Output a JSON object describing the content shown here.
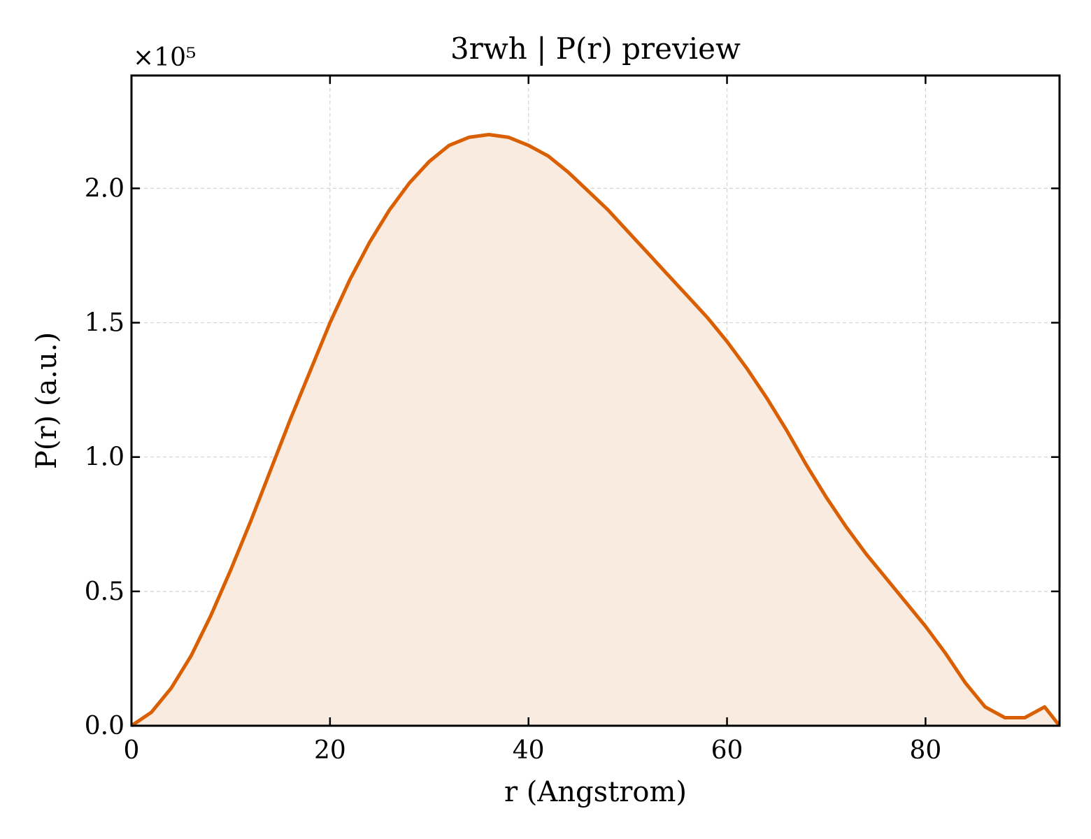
{
  "chart_data": {
    "type": "area",
    "title": "3rwh | P(r) preview",
    "xlabel": "r (Angstrom)",
    "ylabel": "P(r) (a.u.)",
    "y_multiplier_label": "×10⁵",
    "xlim": [
      0,
      93.5
    ],
    "ylim": [
      0,
      2.42
    ],
    "y_scale_factor": 100000,
    "x_ticks": [
      0,
      20,
      40,
      60,
      80
    ],
    "x_tick_labels": [
      "0",
      "20",
      "40",
      "60",
      "80"
    ],
    "y_ticks": [
      0,
      0.5,
      1.0,
      1.5,
      2.0
    ],
    "y_tick_labels": [
      "0.0",
      "0.5",
      "1.0",
      "1.5",
      "2.0"
    ],
    "grid": true,
    "line_color": "#d95f02",
    "fill_color": "#f9ebe0",
    "series": [
      {
        "x": [
          0,
          2,
          4,
          6,
          8,
          10,
          12,
          14,
          16,
          18,
          20,
          22,
          24,
          26,
          28,
          30,
          32,
          34,
          36,
          38,
          40,
          42,
          44,
          46,
          48,
          50,
          52,
          54,
          56,
          58,
          60,
          62,
          64,
          66,
          68,
          70,
          72,
          74,
          76,
          78,
          80,
          82,
          84,
          86,
          88,
          90,
          92,
          93.5
        ],
        "y": [
          0,
          0.05,
          0.14,
          0.26,
          0.41,
          0.58,
          0.76,
          0.95,
          1.14,
          1.32,
          1.5,
          1.66,
          1.8,
          1.92,
          2.02,
          2.1,
          2.16,
          2.19,
          2.2,
          2.19,
          2.16,
          2.12,
          2.06,
          1.99,
          1.92,
          1.84,
          1.76,
          1.68,
          1.6,
          1.52,
          1.43,
          1.33,
          1.22,
          1.1,
          0.97,
          0.85,
          0.74,
          0.64,
          0.55,
          0.46,
          0.37,
          0.27,
          0.16,
          0.07,
          0.03,
          0.03,
          0.07,
          0.0
        ]
      }
    ]
  }
}
